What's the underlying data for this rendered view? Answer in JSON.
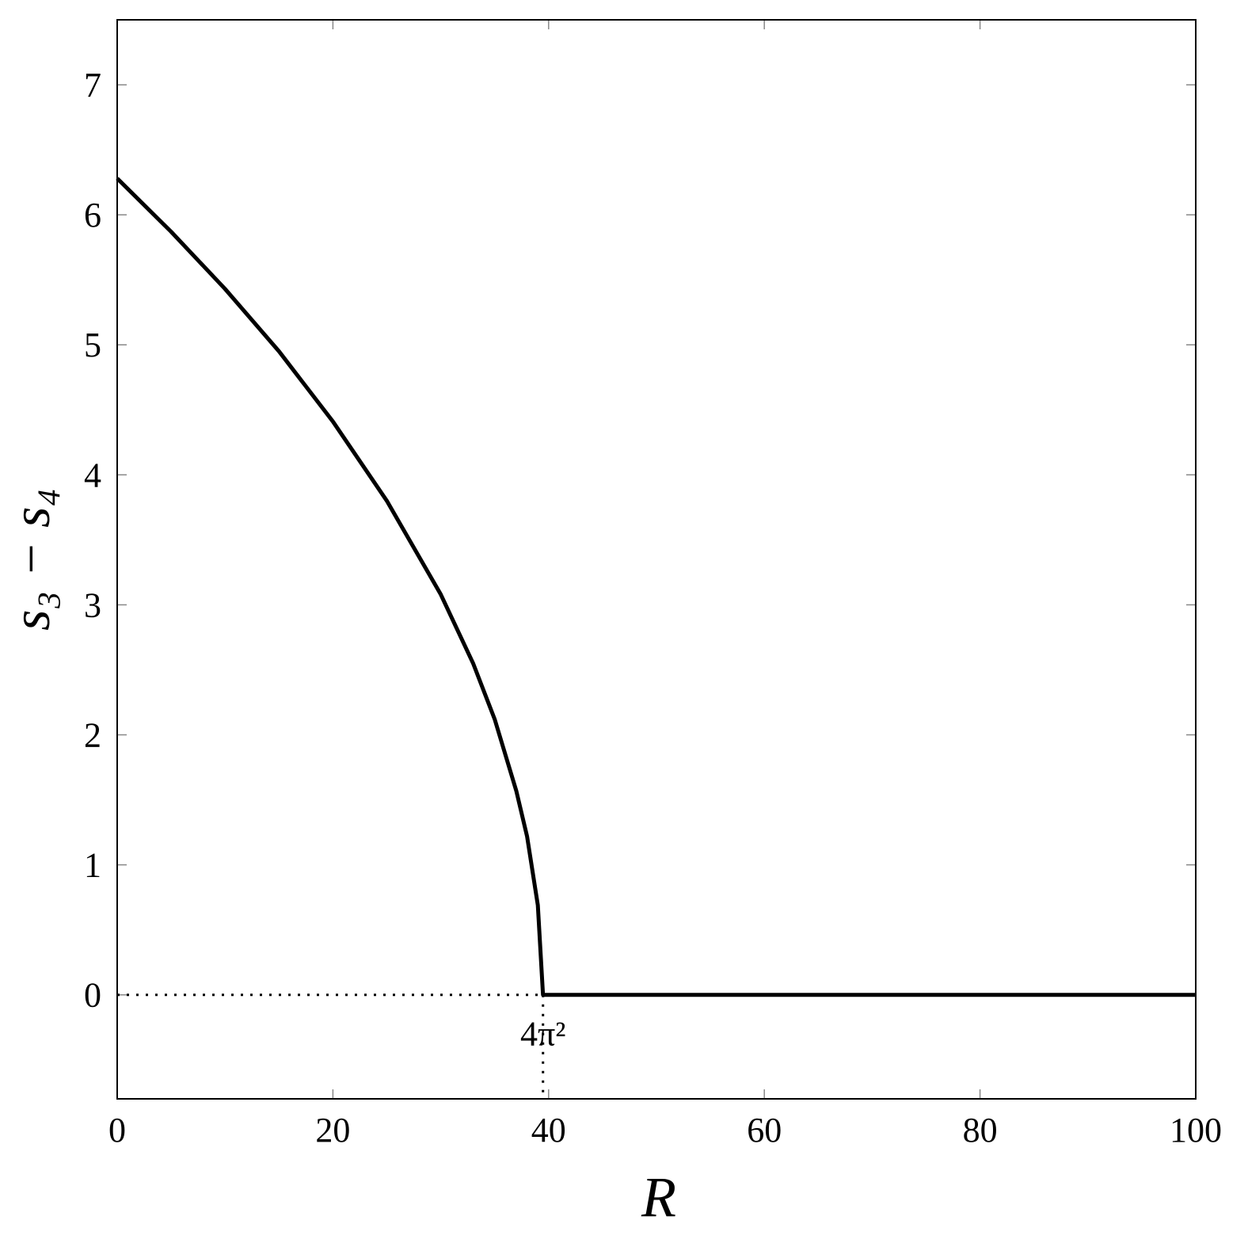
{
  "chart_data": {
    "type": "line",
    "xlabel": "R",
    "ylabel": "s₃ − s₄",
    "x": [
      0,
      5,
      10,
      15,
      20,
      25,
      30,
      33,
      35,
      37,
      38,
      39,
      39.48,
      40,
      60,
      80,
      100
    ],
    "values": [
      6.28,
      5.87,
      5.43,
      4.95,
      4.41,
      3.8,
      3.08,
      2.55,
      2.12,
      1.57,
      1.22,
      0.69,
      0,
      0,
      0,
      0,
      0
    ],
    "color": "#000000",
    "xlim": [
      0,
      100
    ],
    "xticks": [
      0,
      20,
      40,
      60,
      80,
      100
    ],
    "ylim": [
      -0.8,
      7.5
    ],
    "yticks": [
      0,
      1,
      2,
      3,
      4,
      5,
      6,
      7
    ],
    "grid": false,
    "annotations": [
      {
        "text": "4π²",
        "x": 39.48,
        "y": 0
      }
    ]
  }
}
